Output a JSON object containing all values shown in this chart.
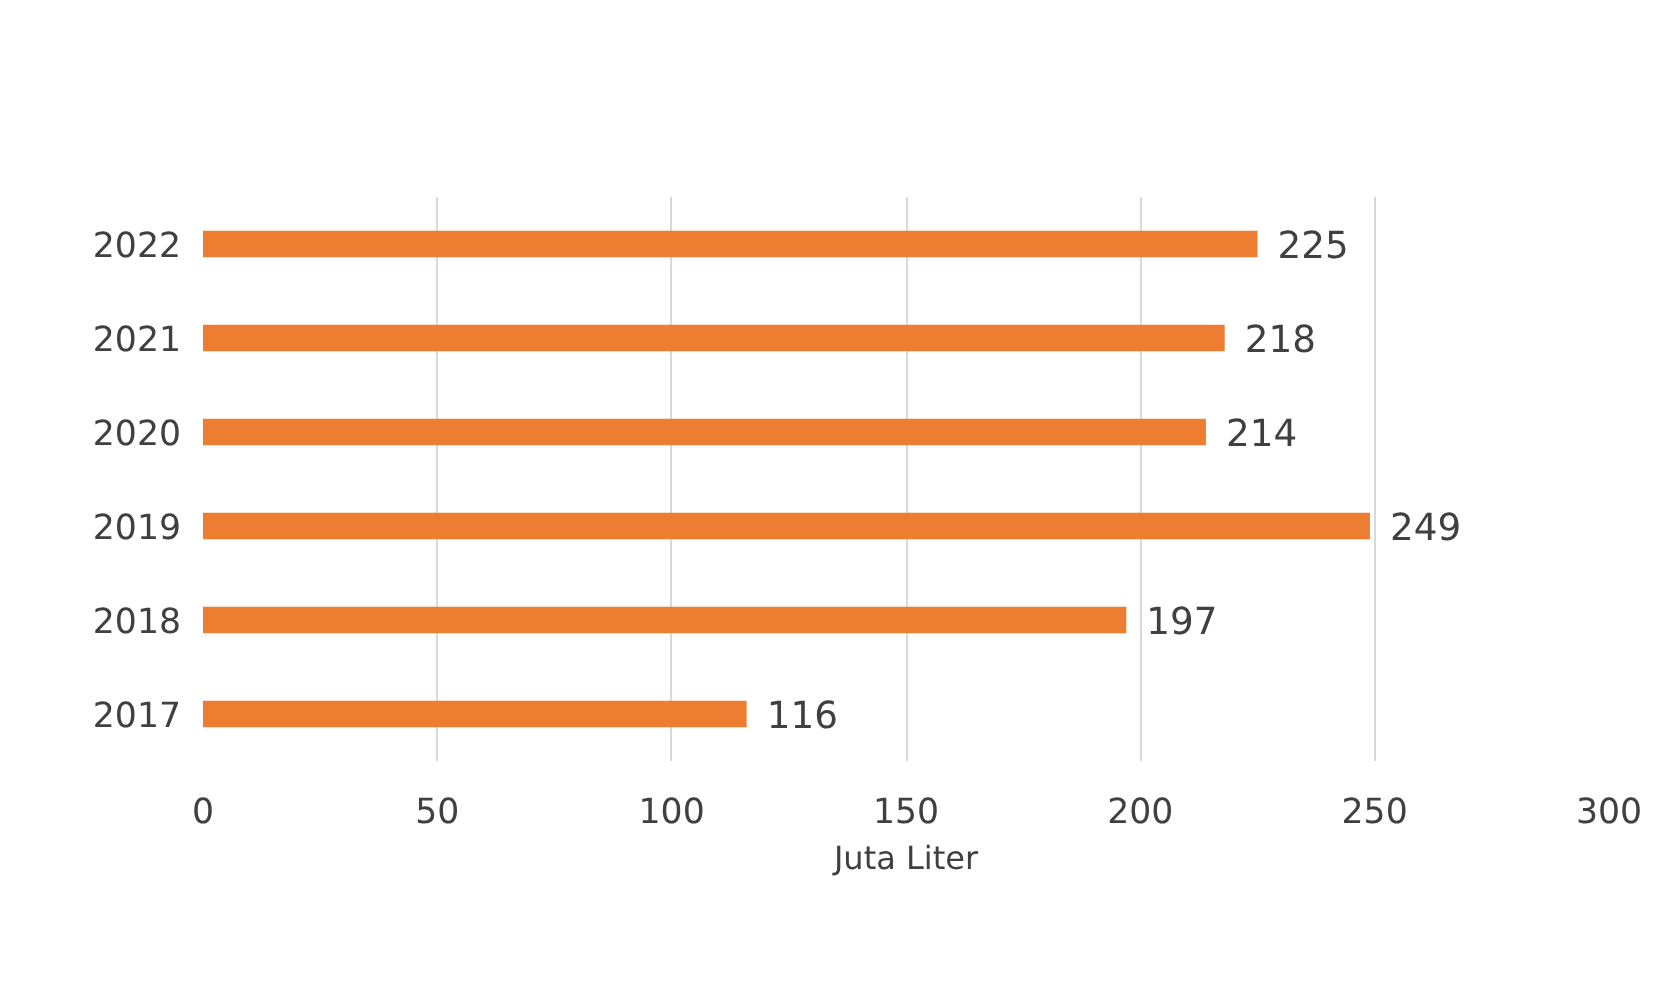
{
  "chart_data": {
    "type": "bar",
    "orientation": "horizontal",
    "xlabel": "Juta Liter",
    "categories": [
      "2022",
      "2021",
      "2020",
      "2019",
      "2018",
      "2017"
    ],
    "values": [
      225,
      218,
      214,
      249,
      197,
      116
    ],
    "color": "#ed7d31",
    "xlim": [
      0,
      300
    ],
    "xticks": [
      0,
      50,
      100,
      150,
      200,
      250,
      300
    ],
    "grid": "x",
    "data_labels": true
  }
}
